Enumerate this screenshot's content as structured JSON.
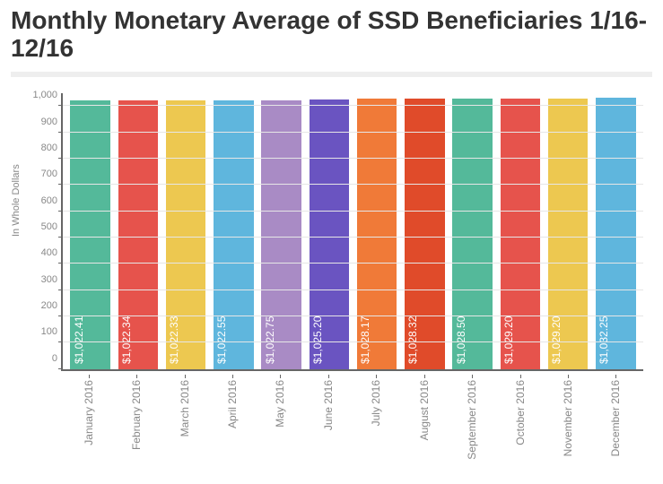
{
  "title": "Monthly Monetary Average of SSD Beneficiaries 1/16-12/16",
  "title_fontsize": 28,
  "title_color": "#333333",
  "rule_color": "#eeeeee",
  "chart": {
    "type": "bar",
    "ylabel": "In Whole Dollars",
    "y_max": 1050,
    "ytick_step": 100,
    "ytick_labels": [
      "0",
      "100",
      "200",
      "300",
      "400",
      "500",
      "600",
      "700",
      "800",
      "900",
      "1,000"
    ],
    "axis_color": "#666666",
    "grid_color": "#e6e6e6",
    "tick_font_color": "#888888",
    "tick_fontsize": 11,
    "bar_label_fontsize": 12,
    "bar_label_color": "#ffffff",
    "xlabel_fontsize": 12,
    "xlabel_color": "#888888",
    "bar_width_ratio": 0.84,
    "background_color": "#ffffff",
    "categories": [
      "January 2016",
      "February 2016",
      "March 2016",
      "April 2016",
      "May 2016",
      "June 2016",
      "July 2016",
      "August 2016",
      "September 2016",
      "October 2016",
      "November 2016",
      "December 2016"
    ],
    "values": [
      1022.41,
      1022.34,
      1022.33,
      1022.55,
      1022.75,
      1025.2,
      1028.17,
      1028.32,
      1028.5,
      1029.2,
      1029.2,
      1032.25
    ],
    "value_labels": [
      "$1,022.41",
      "$1,022.34",
      "$1,022.33",
      "$1,022.55",
      "$1,022.75",
      "$1,025.20",
      "$1,028.17",
      "$1,028.32",
      "$1,028.50",
      "$1,029.20",
      "$1,029.20",
      "$1,032.25"
    ],
    "bar_colors": [
      "#54b99a",
      "#e6534c",
      "#edc850",
      "#5fb6dd",
      "#a98bc5",
      "#6a54c1",
      "#f07a38",
      "#e04b2a",
      "#54b99a",
      "#e6534c",
      "#edc850",
      "#5fb6dd"
    ]
  }
}
